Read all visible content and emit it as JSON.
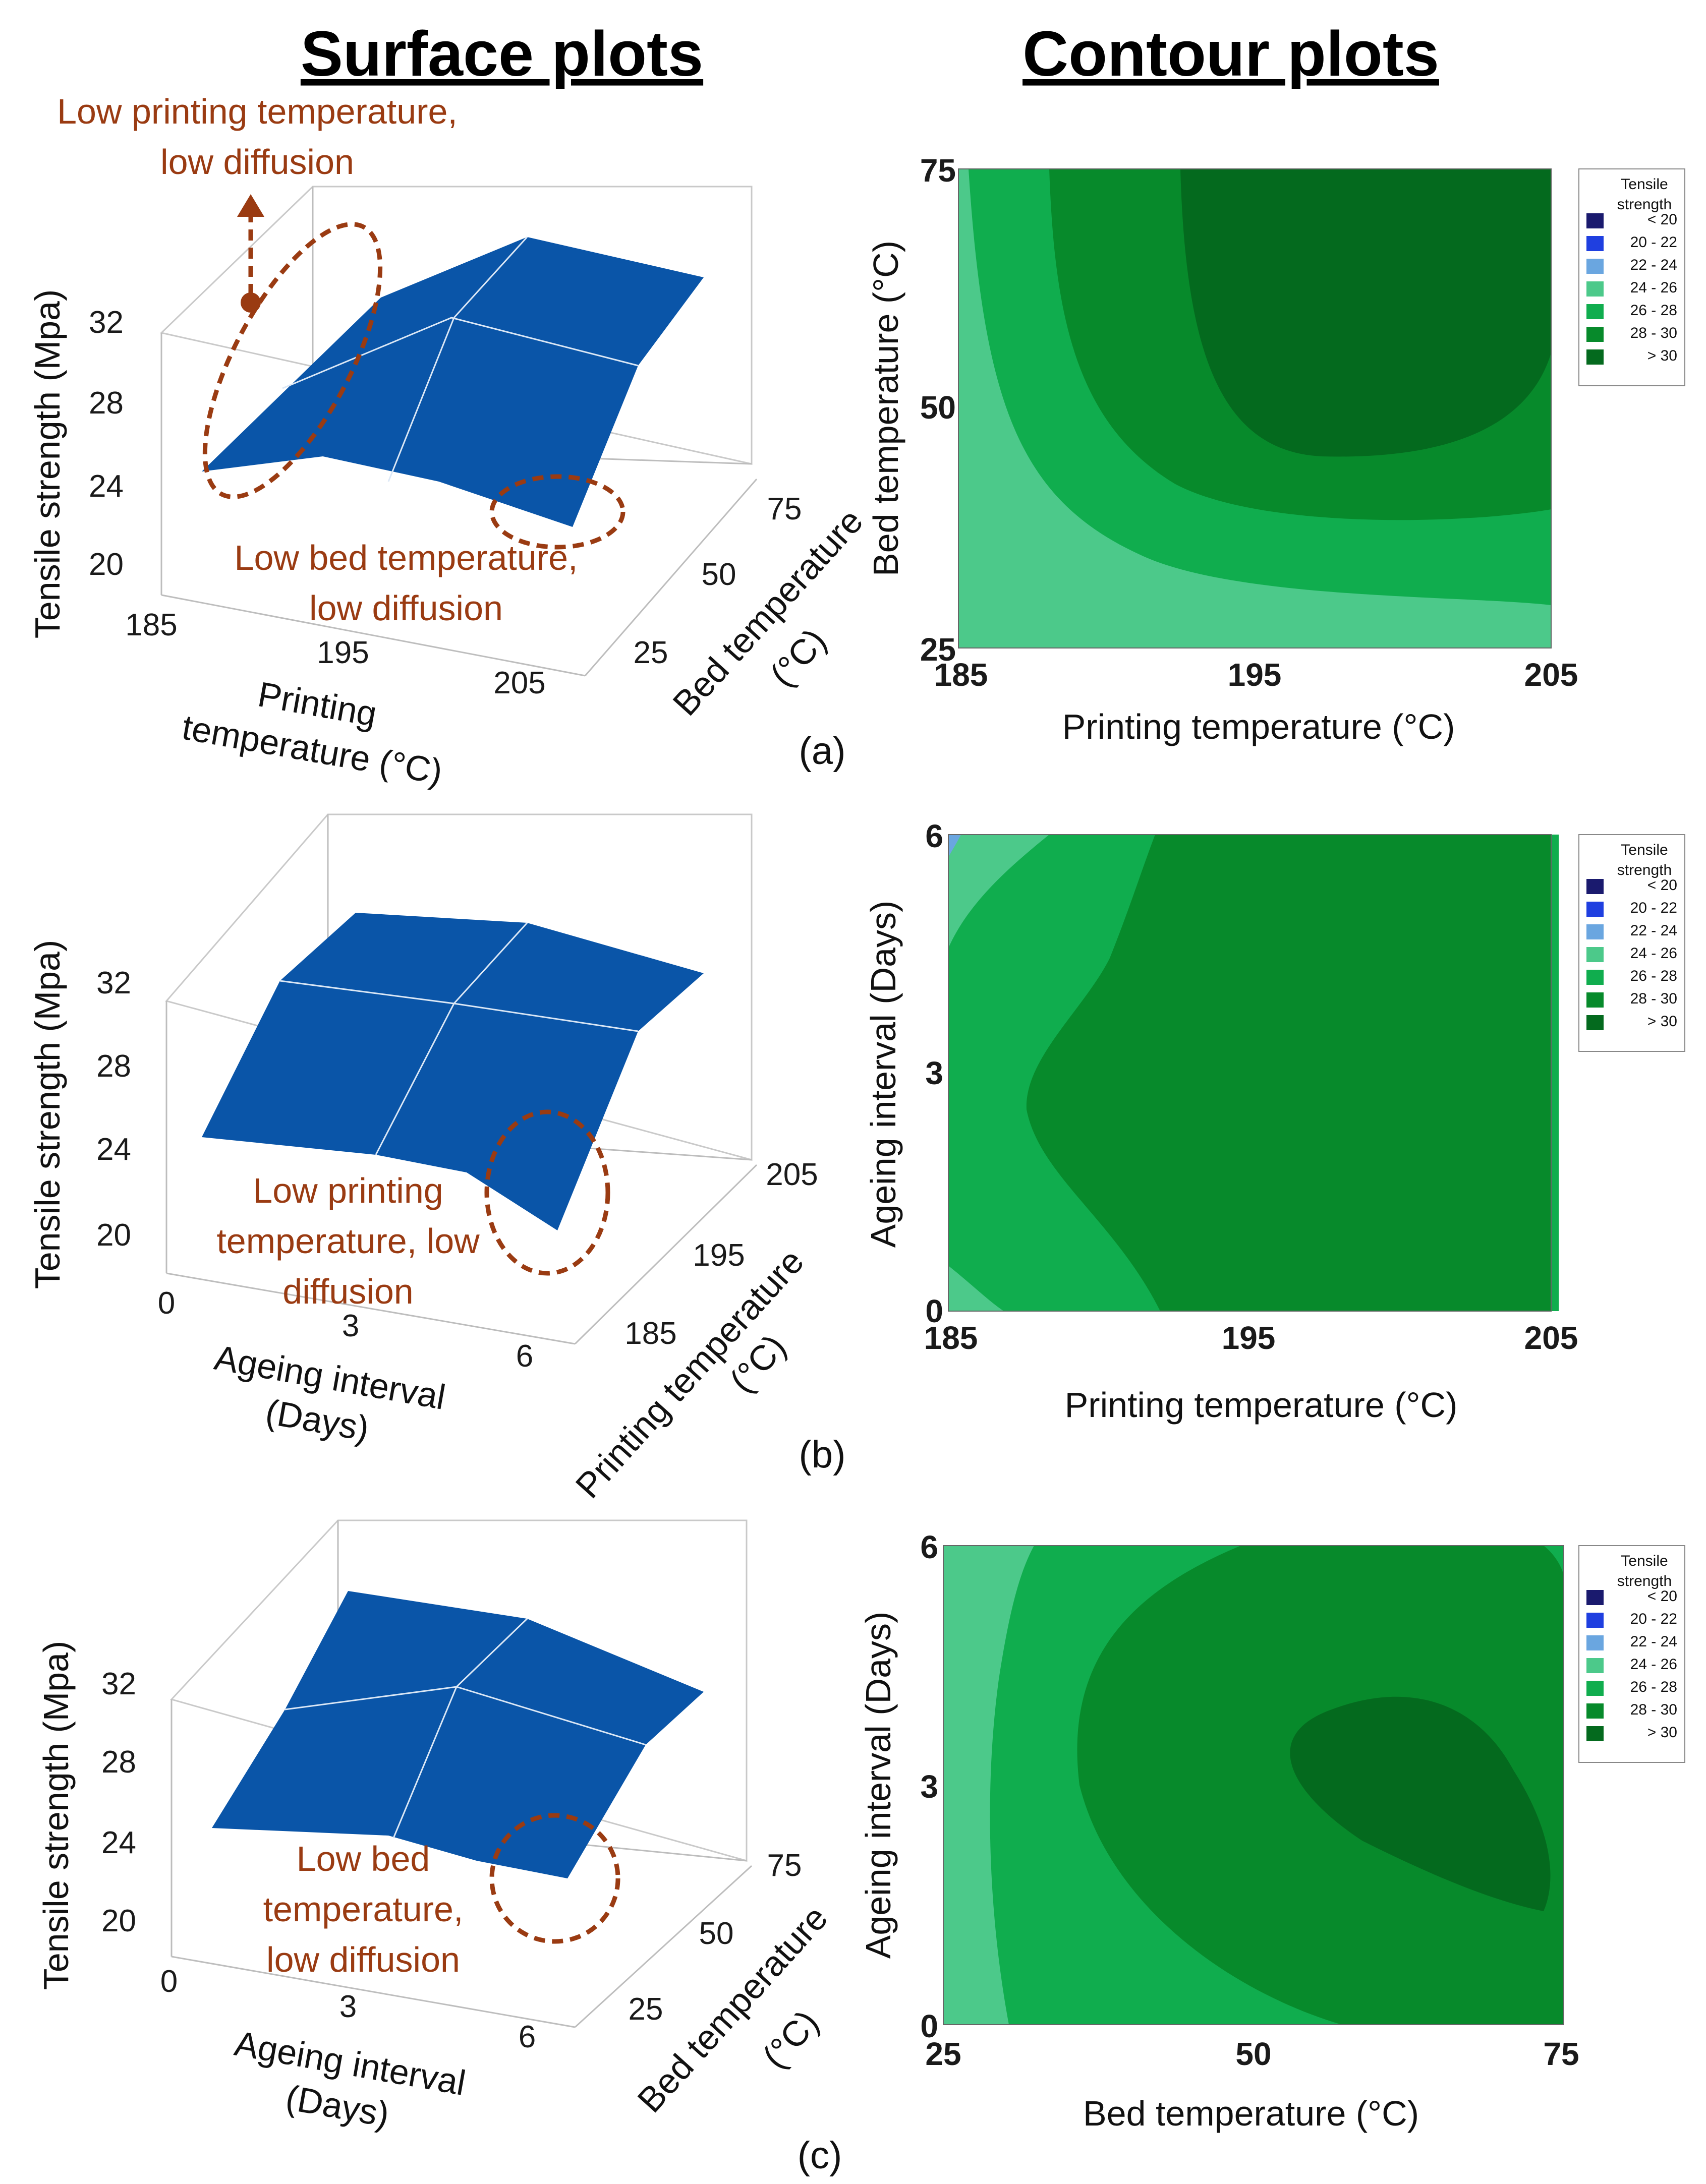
{
  "headings": {
    "left": "Surface plots",
    "right": "Contour plots"
  },
  "colors": {
    "surface": "#0a55a8",
    "annotation": "#9a3b12",
    "levels": [
      "#1a1a6e",
      "#1f3fe0",
      "#6aa6e0",
      "#4cc98a",
      "#10ad4e",
      "#078a2b",
      "#046a1e"
    ]
  },
  "chart_data": [
    {
      "id": "a-surface",
      "type": "surface",
      "panel": "(a)",
      "zlabel": "Tensile strength (Mpa)",
      "zticks": [
        "32",
        "28",
        "24",
        "20"
      ],
      "xlabel_line1": "Printing",
      "xlabel_line2": "temperature (°C)",
      "xticks": [
        "185",
        "195",
        "205"
      ],
      "ylabel_line1": "Bed temperature",
      "ylabel_line2": "(°C)",
      "yticks": [
        "25",
        "50",
        "75"
      ],
      "annotations": [
        {
          "line1": "Low printing  temperature,",
          "line2": "low diffusion"
        },
        {
          "line1": "Low bed temperature,",
          "line2": "low diffusion"
        }
      ]
    },
    {
      "id": "a-contour",
      "type": "contour",
      "xlabel": "Printing temperature (°C)",
      "xticks": [
        "185",
        "195",
        "205"
      ],
      "ylabel": "Bed temperature (°C)",
      "yticks": [
        "25",
        "50",
        "75"
      ]
    },
    {
      "id": "b-surface",
      "type": "surface",
      "panel": "(b)",
      "zlabel": "Tensile strength (Mpa)",
      "zticks": [
        "32",
        "28",
        "24",
        "20"
      ],
      "xlabel_line1": "Ageing interval",
      "xlabel_line2": "(Days)",
      "xticks": [
        "0",
        "3",
        "6"
      ],
      "ylabel_line1": "Printing temperature",
      "ylabel_line2": "(°C)",
      "yticks": [
        "185",
        "195",
        "205"
      ],
      "annotations": [
        {
          "line1": "Low printing",
          "line2": "temperature, low",
          "line3": "diffusion"
        }
      ]
    },
    {
      "id": "b-contour",
      "type": "contour",
      "xlabel": "Printing temperature (°C)",
      "xticks": [
        "185",
        "195",
        "205"
      ],
      "ylabel": "Ageing interval (Days)",
      "yticks": [
        "0",
        "3",
        "6"
      ]
    },
    {
      "id": "c-surface",
      "type": "surface",
      "panel": "(c)",
      "zlabel": "Tensile strength (Mpa)",
      "zticks": [
        "32",
        "28",
        "24",
        "20"
      ],
      "xlabel_line1": "Ageing interval",
      "xlabel_line2": "(Days)",
      "xticks": [
        "0",
        "3",
        "6"
      ],
      "ylabel_line1": "Bed temperature",
      "ylabel_line2": "(°C)",
      "yticks": [
        "25",
        "50",
        "75"
      ],
      "annotations": [
        {
          "line1": "Low bed",
          "line2": "temperature,",
          "line3": "low diffusion"
        }
      ]
    },
    {
      "id": "c-contour",
      "type": "contour",
      "xlabel": "Bed temperature (°C)",
      "xticks": [
        "25",
        "50",
        "75"
      ],
      "ylabel": "Ageing interval (Days)",
      "yticks": [
        "0",
        "3",
        "6"
      ]
    }
  ],
  "legend": {
    "title_line1": "Tensile",
    "title_line2": "strength",
    "entries": [
      "< 20",
      "20  -  22",
      "22  -  24",
      "24  -  26",
      "26  -  28",
      "28  -  30",
      "> 30"
    ]
  }
}
